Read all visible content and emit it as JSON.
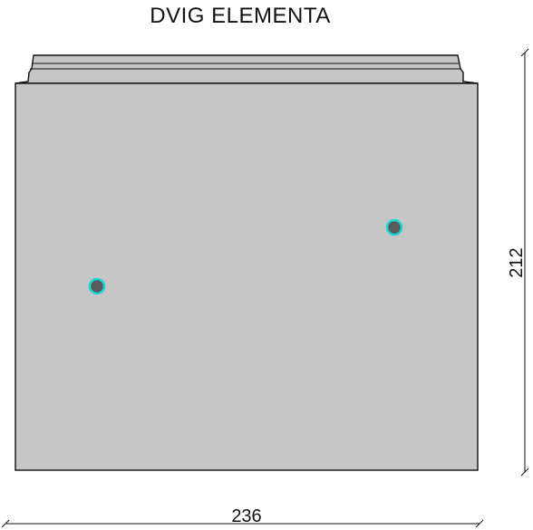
{
  "title": "DVIG ELEMENTA",
  "element": {
    "fill_color": "#c6c6c6",
    "outline_color": "#111111",
    "hole_fill_color": "#5a5a5a",
    "hole_ring_color": "#19d4d4",
    "hole_count": 2
  },
  "dimensions": {
    "width_label": "236",
    "height_label": "212"
  }
}
